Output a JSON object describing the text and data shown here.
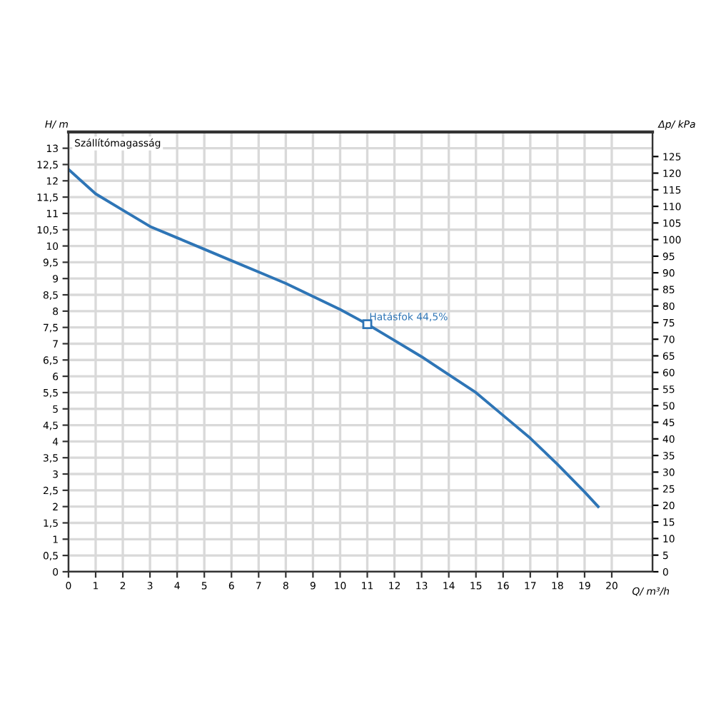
{
  "chart_data": {
    "type": "line",
    "xlabel": "Q/ m³/h",
    "ylabel": "H/ m",
    "y2label": "Δp/ kPa",
    "annotations": [
      "Szállítómagasság",
      {
        "text": "Hatásfok 44,5%",
        "x": 11,
        "y": 7.6
      }
    ],
    "x": [
      0,
      1,
      2,
      3,
      4,
      5,
      6,
      7,
      8,
      9,
      10,
      11,
      12,
      13,
      14,
      15,
      16,
      17,
      18,
      19,
      19.5
    ],
    "series": [
      {
        "color": "#2e75b6",
        "values": [
          12.35,
          11.6,
          11.1,
          10.6,
          10.25,
          9.9,
          9.55,
          9.2,
          8.85,
          8.45,
          8.05,
          7.6,
          7.1,
          6.6,
          6.05,
          5.5,
          4.8,
          4.1,
          3.3,
          2.45,
          2.0
        ]
      }
    ],
    "xlim": [
      0,
      21.5
    ],
    "ylim": [
      0,
      13.5
    ],
    "y2lim": [
      0,
      132.4
    ],
    "xticks": [
      0,
      1,
      2,
      3,
      4,
      5,
      6,
      7,
      8,
      9,
      10,
      11,
      12,
      13,
      14,
      15,
      16,
      17,
      18,
      19,
      20
    ],
    "yticks": [
      0,
      {
        "value": 0.5,
        "label": "0,5"
      },
      1,
      {
        "value": 1.5,
        "label": "1,5"
      },
      2,
      {
        "value": 2.5,
        "label": "2,5"
      },
      3,
      {
        "value": 3.5,
        "label": "3,5"
      },
      4,
      {
        "value": 4.5,
        "label": "4,5"
      },
      5,
      {
        "value": 5.5,
        "label": "5,5"
      },
      6,
      {
        "value": 6.5,
        "label": "6,5"
      },
      7,
      {
        "value": 7.5,
        "label": "7,5"
      },
      8,
      {
        "value": 8.5,
        "label": "8,5"
      },
      9,
      {
        "value": 9.5,
        "label": "9,5"
      },
      10,
      {
        "value": 10.5,
        "label": "10,5"
      },
      11,
      {
        "value": 11.5,
        "label": "11,5"
      },
      12,
      {
        "value": 12.5,
        "label": "12,5"
      },
      13
    ],
    "y2ticks": [
      0,
      5,
      10,
      15,
      20,
      25,
      30,
      35,
      40,
      45,
      50,
      55,
      60,
      65,
      70,
      75,
      80,
      85,
      90,
      95,
      100,
      105,
      110,
      115,
      120,
      125
    ],
    "grid": true,
    "line_style": "solid",
    "marker": "none"
  }
}
